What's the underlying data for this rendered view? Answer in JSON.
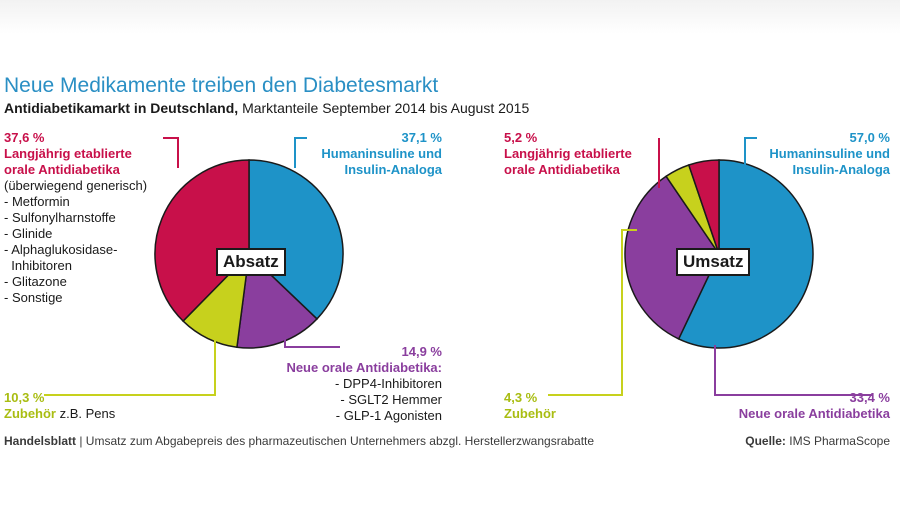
{
  "title": "Neue Medikamente treiben den Diabetesmarkt",
  "subtitle_bold": "Antidiabetikamarkt in Deutschland,",
  "subtitle_rest": "Marktanteile September 2014 bis August 2015",
  "colors": {
    "established": "#c8104a",
    "insulin": "#1e93c8",
    "new_oral": "#8a3e9e",
    "accessories": "#c7d11d",
    "title": "#2a8fc4"
  },
  "left_pie": {
    "center_label": "Absatz",
    "established_pct": "37,6 %",
    "established_name_l1": "Langjährig etablierte",
    "established_name_l2": "orale Antidiabetika",
    "established_note": "(überwiegend generisch)",
    "established_items": [
      "- Metformin",
      "- Sulfonylharnstoffe",
      "- Glinide",
      "- Alphaglukosidase-",
      "  Inhibitoren",
      "- Glitazone",
      "- Sonstige"
    ],
    "insulin_pct": "37,1 %",
    "insulin_name_l1": "Humaninsuline und",
    "insulin_name_l2": "Insulin-Analoga",
    "new_oral_pct": "14,9 %",
    "new_oral_name": "Neue orale Antidiabetika:",
    "new_oral_items": [
      "- DPP4-Inhibitoren",
      "- SGLT2 Hemmer",
      "- GLP-1 Agonisten"
    ],
    "accessories_pct": "10,3 %",
    "accessories_name": "Zubehör",
    "accessories_note": "z.B. Pens"
  },
  "right_pie": {
    "center_label": "Umsatz",
    "established_pct": "5,2 %",
    "established_name_l1": "Langjährig etablierte",
    "established_name_l2": "orale Antidiabetika",
    "insulin_pct": "57,0 %",
    "insulin_name_l1": "Humaninsuline und",
    "insulin_name_l2": "Insulin-Analoga",
    "new_oral_pct": "33,4 %",
    "new_oral_name": "Neue orale Antidiabetika",
    "accessories_pct": "4,3 %",
    "accessories_name": "Zubehör"
  },
  "footer": {
    "source_brand": "Handelsblatt",
    "note": "| Umsatz zum Abgabepreis des pharmazeutischen Unternehmers abzgl. Herstellerzwangsrabatte",
    "quelle_label": "Quelle:",
    "quelle_value": "IMS PharmaScope"
  },
  "chart_data": [
    {
      "type": "pie",
      "title": "Absatz",
      "categories": [
        "Humaninsuline und Insulin-Analoga",
        "Neue orale Antidiabetika",
        "Zubehör",
        "Langjährig etablierte orale Antidiabetika"
      ],
      "values": [
        37.1,
        14.9,
        10.3,
        37.6
      ],
      "unit": "%"
    },
    {
      "type": "pie",
      "title": "Umsatz",
      "categories": [
        "Humaninsuline und Insulin-Analoga",
        "Neue orale Antidiabetika",
        "Zubehör",
        "Langjährig etablierte orale Antidiabetika"
      ],
      "values": [
        57.0,
        33.4,
        4.3,
        5.2
      ],
      "unit": "%"
    }
  ]
}
